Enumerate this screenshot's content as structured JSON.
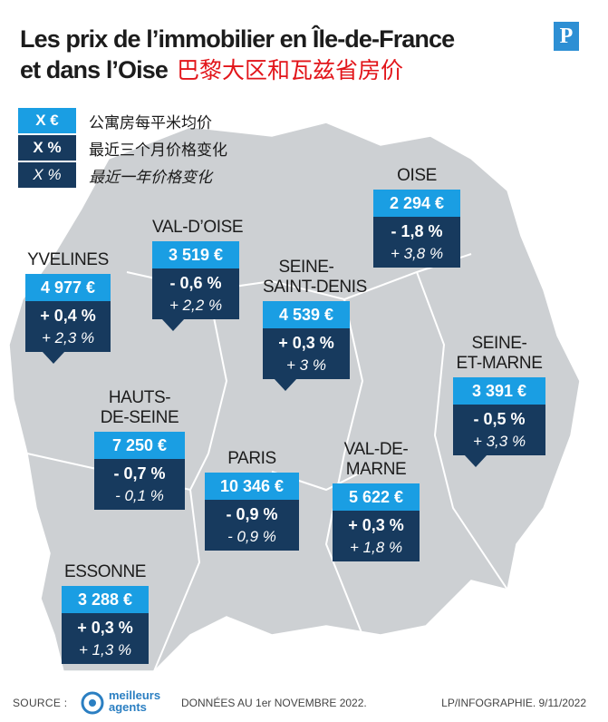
{
  "title": {
    "line1": "Les prix de l’immobilier en Île-de-France",
    "line2": "et dans l’Oise",
    "line2_zh": "巴黎大区和瓦兹省房价"
  },
  "logo": {
    "letter": "P"
  },
  "legend": [
    {
      "swatch": "X €",
      "label": "公寓房每平米均价"
    },
    {
      "swatch": "X %",
      "label": "最近三个月价格变化"
    },
    {
      "swatch": "X %",
      "label": "最近一年价格变化"
    }
  ],
  "colors": {
    "price": "#1a9ee3",
    "change": "#173a5e",
    "map": "#cdd0d3",
    "title_zh": "#e2151a"
  },
  "departments": {
    "oise": {
      "name": [
        "OISE"
      ],
      "price": "2 294 €",
      "change_3m": "- 1,8 %",
      "change_1y": "+ 3,8 %"
    },
    "val_doise": {
      "name": [
        "VAL-D’OISE"
      ],
      "price": "3 519 €",
      "change_3m": "- 0,6 %",
      "change_1y": "+ 2,2 %"
    },
    "yvelines": {
      "name": [
        "YVELINES"
      ],
      "price": "4 977 €",
      "change_3m": "+ 0,4 %",
      "change_1y": "+ 2,3 %"
    },
    "seine_saint_denis": {
      "name": [
        "SEINE-",
        "SAINT-DENIS"
      ],
      "price": "4 539 €",
      "change_3m": "+ 0,3 %",
      "change_1y": "+ 3 %"
    },
    "seine_et_marne": {
      "name": [
        "SEINE-",
        "ET-MARNE"
      ],
      "price": "3 391 €",
      "change_3m": "- 0,5 %",
      "change_1y": "+ 3,3 %"
    },
    "hauts_de_seine": {
      "name": [
        "HAUTS-",
        "DE-SEINE"
      ],
      "price": "7 250 €",
      "change_3m": "- 0,7 %",
      "change_1y": "- 0,1 %"
    },
    "paris": {
      "name": [
        "PARIS"
      ],
      "price": "10 346 €",
      "change_3m": "- 0,9 %",
      "change_1y": "- 0,9 %"
    },
    "val_de_marne": {
      "name": [
        "VAL-DE-",
        "MARNE"
      ],
      "price": "5 622 €",
      "change_3m": "+ 0,3 %",
      "change_1y": "+ 1,8 %"
    },
    "essonne": {
      "name": [
        "ESSONNE"
      ],
      "price": "3 288 €",
      "change_3m": "+ 0,3 %",
      "change_1y": "+ 1,3 %"
    }
  },
  "footer": {
    "source_label": "SOURCE :",
    "source_name": [
      "meilleurs",
      "agents"
    ],
    "date_note": "DONNÉES AU 1er NOVEMBRE 2022.",
    "credit": "LP/INFOGRAPHIE.  9/11/2022"
  }
}
